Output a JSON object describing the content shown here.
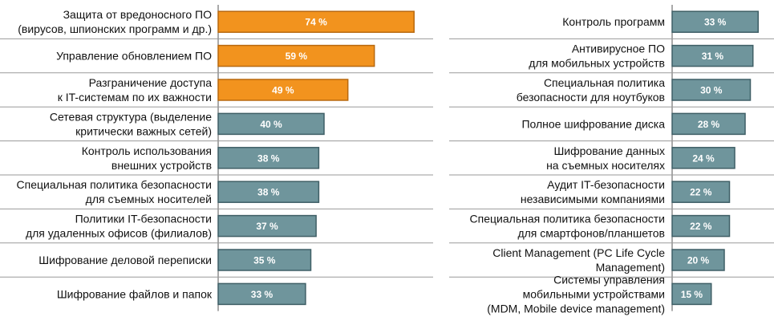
{
  "chart_data": [
    {
      "type": "bar",
      "orientation": "horizontal",
      "unit": "%",
      "xlim": [
        0,
        100
      ],
      "categories": [
        "Защита от вредоносного ПО (вирусов, шпионских программ и др.)",
        "Управление обновлением ПО",
        "Разграничение доступа к IT-системам по их важности",
        "Сетевая структура (выделение критически важных сетей)",
        "Контроль использования внешних устройств",
        "Специальная политика безопасности для съемных носителей",
        "Политики IT-безопасности для удаленных офисов (филиалов)",
        "Шифрование деловой переписки",
        "Шифрование файлов и папок"
      ],
      "label_lines": [
        [
          "Защита от вредоносного ПО",
          "(вирусов, шпионских программ и др.)"
        ],
        [
          "Управление обновлением ПО"
        ],
        [
          "Разграничение доступа",
          "к IT-системам по их важности"
        ],
        [
          "Сетевая структура (выделение",
          "критически важных сетей)"
        ],
        [
          "Контроль использования",
          "внешних устройств"
        ],
        [
          "Специальная политика безопасности",
          "для съемных носителей"
        ],
        [
          "Политики IT-безопасности",
          "для удаленных офисов (филиалов)"
        ],
        [
          "Шифрование деловой переписки"
        ],
        [
          "Шифрование файлов и папок"
        ]
      ],
      "values": [
        74,
        59,
        49,
        40,
        38,
        38,
        37,
        35,
        33
      ],
      "value_labels": [
        "74 %",
        "59 %",
        "49 %",
        "40 %",
        "38 %",
        "38 %",
        "37 %",
        "35 %",
        "33 %"
      ],
      "highlighted": [
        true,
        true,
        true,
        false,
        false,
        false,
        false,
        false,
        false
      ]
    },
    {
      "type": "bar",
      "orientation": "horizontal",
      "unit": "%",
      "xlim": [
        0,
        100
      ],
      "categories": [
        "Контроль программ",
        "Антивирусное ПО для мобильных устройств",
        "Специальная политика безопасности для ноутбуков",
        "Полное шифрование диска",
        "Шифрование данных на съемных носителях",
        "Аудит IT-безопасности независимыми компаниями",
        "Специальная политика безопасности для смартфонов/планшетов",
        "Client Management (PC Life Cycle Management)",
        "Системы управления мобильными устройствами (MDM, Mobile device management)"
      ],
      "label_lines": [
        [
          "Контроль программ"
        ],
        [
          "Антивирусное ПО",
          "для мобильных устройств"
        ],
        [
          "Специальная политика",
          "безопасности для ноутбуков"
        ],
        [
          "Полное шифрование диска"
        ],
        [
          "Шифрование данных",
          "на съемных носителях"
        ],
        [
          "Аудит IT-безопасности",
          "независимыми компаниями"
        ],
        [
          "Специальная политика безопасности",
          "для смартфонов/планшетов"
        ],
        [
          "Client Management (PC Life Cycle",
          "Management)"
        ],
        [
          "Системы управления",
          "мобильными устройствами",
          "(MDM, Mobile device management)"
        ]
      ],
      "values": [
        33,
        31,
        30,
        28,
        24,
        22,
        22,
        20,
        15
      ],
      "value_labels": [
        "33 %",
        "31 %",
        "30 %",
        "28 %",
        "24 %",
        "22 %",
        "22 %",
        "20 %",
        "15 %"
      ],
      "highlighted": [
        false,
        false,
        false,
        false,
        false,
        false,
        false,
        false,
        false
      ]
    }
  ],
  "colors": {
    "highlight_fill": "#f2931e",
    "highlight_stroke": "#b8690f",
    "normal_fill": "#6f959c",
    "normal_stroke": "#3f5f66",
    "separator": "#9a9a9a",
    "axis": "#555555",
    "value_text": "#ffffff",
    "label_text": "#111111"
  }
}
